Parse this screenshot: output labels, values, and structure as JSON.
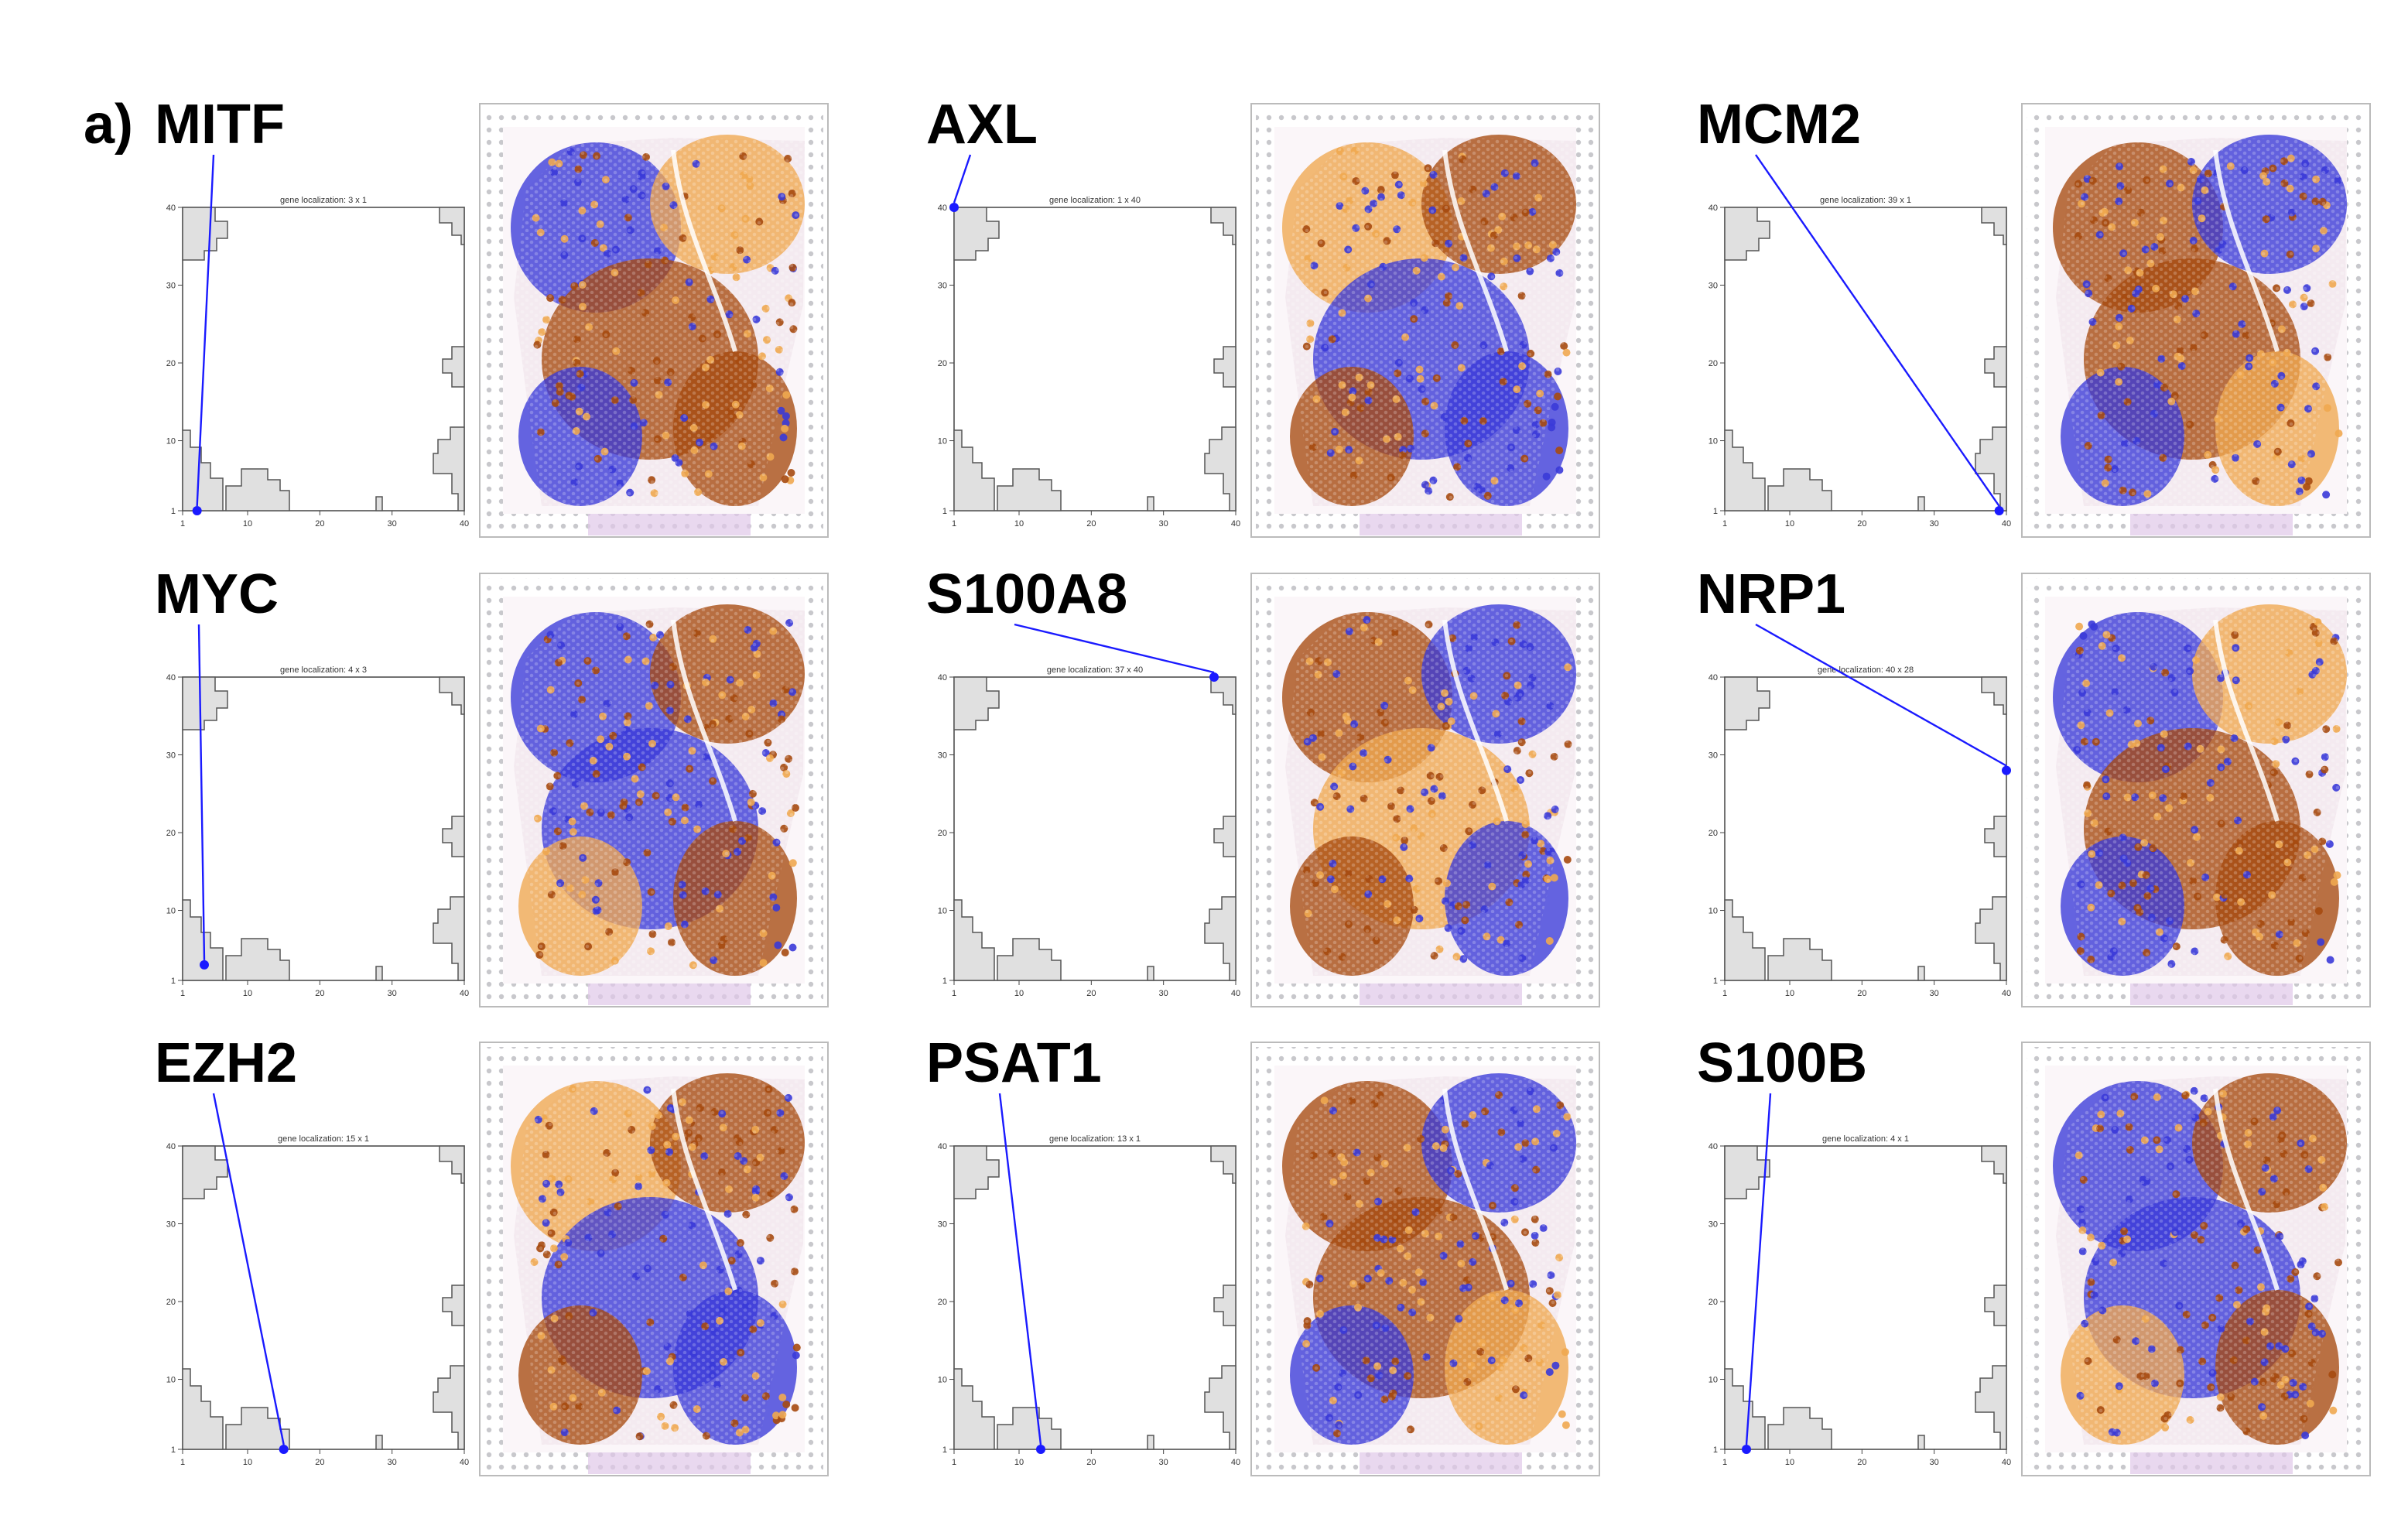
{
  "panel_label": "a)",
  "axis_ticks": {
    "y": [
      "40",
      "30",
      "20",
      "10",
      "1"
    ],
    "x": [
      "1",
      "10",
      "20",
      "30",
      "40"
    ]
  },
  "colors": {
    "marker": "#1a1aff",
    "high": "#a64a10",
    "mid": "#f0a850",
    "low": "#3a3ad8",
    "tissue_bg": "#f4eaf0",
    "grid_region": "#e0e0e0"
  },
  "panels": [
    {
      "gene": "MITF",
      "localization_title": "gene localization: 3 x 1",
      "spot": [
        3,
        1
      ]
    },
    {
      "gene": "AXL",
      "localization_title": "gene localization: 1 x 40",
      "spot": [
        1,
        40
      ]
    },
    {
      "gene": "MCM2",
      "localization_title": "gene localization: 39 x 1",
      "spot": [
        39,
        1
      ]
    },
    {
      "gene": "MYC",
      "localization_title": "gene localization: 4 x 3",
      "spot": [
        4,
        3
      ]
    },
    {
      "gene": "S100A8",
      "localization_title": "gene localization: 37 x 40",
      "spot": [
        37,
        40
      ]
    },
    {
      "gene": "NRP1",
      "localization_title": "gene localization: 40 x 28",
      "spot": [
        40,
        28
      ]
    },
    {
      "gene": "EZH2",
      "localization_title": "gene localization: 15 x 1",
      "spot": [
        15,
        1
      ]
    },
    {
      "gene": "PSAT1",
      "localization_title": "gene localization: 13 x 1",
      "spot": [
        13,
        1
      ]
    },
    {
      "gene": "S100B",
      "localization_title": "gene localization: 4 x 1",
      "spot": [
        4,
        1
      ]
    }
  ]
}
